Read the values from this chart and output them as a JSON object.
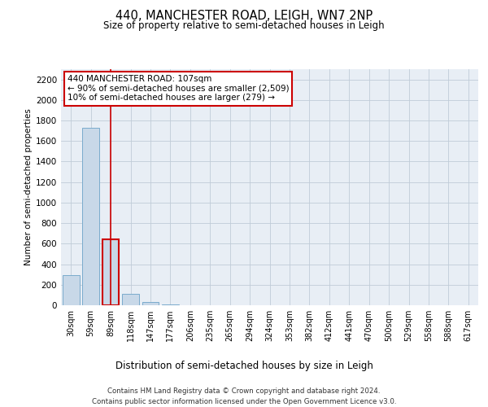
{
  "title": "440, MANCHESTER ROAD, LEIGH, WN7 2NP",
  "subtitle": "Size of property relative to semi-detached houses in Leigh",
  "xlabel": "Distribution of semi-detached houses by size in Leigh",
  "ylabel": "Number of semi-detached properties",
  "categories": [
    "30sqm",
    "59sqm",
    "89sqm",
    "118sqm",
    "147sqm",
    "177sqm",
    "206sqm",
    "235sqm",
    "265sqm",
    "294sqm",
    "324sqm",
    "353sqm",
    "382sqm",
    "412sqm",
    "441sqm",
    "470sqm",
    "500sqm",
    "529sqm",
    "558sqm",
    "588sqm",
    "617sqm"
  ],
  "bar_heights": [
    290,
    1730,
    640,
    110,
    30,
    5,
    2,
    1,
    1,
    0,
    0,
    0,
    0,
    0,
    0,
    0,
    0,
    0,
    0,
    0,
    0
  ],
  "bar_color": "#c8d8e8",
  "bar_edge_color": "#7aabcc",
  "grid_color": "#c0ccd8",
  "background_color": "#e8eef5",
  "annotation_box_text": "440 MANCHESTER ROAD: 107sqm\n← 90% of semi-detached houses are smaller (2,509)\n10% of semi-detached houses are larger (279) →",
  "annotation_box_color": "#cc0000",
  "highlight_bar_index": 2,
  "highlight_bar_edge_color": "#cc0000",
  "ylim": [
    0,
    2300
  ],
  "yticks": [
    0,
    200,
    400,
    600,
    800,
    1000,
    1200,
    1400,
    1600,
    1800,
    2000,
    2200
  ],
  "footnote1": "Contains HM Land Registry data © Crown copyright and database right 2024.",
  "footnote2": "Contains public sector information licensed under the Open Government Licence v3.0."
}
